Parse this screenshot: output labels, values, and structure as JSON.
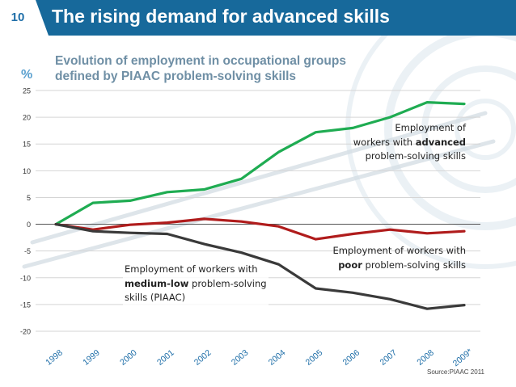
{
  "slide": {
    "number": "10",
    "title": "The rising demand for advanced skills",
    "subtitle_line1": "Evolution of employment in occupational groups",
    "subtitle_line2": "defined by PIAAC problem-solving skills",
    "unit": "%",
    "source": "Source:PIAAC 2011"
  },
  "annotations": {
    "advanced": {
      "pre1": "Employment of",
      "pre2": "workers with ",
      "hl": "advanced",
      "line3": "problem-solving skills"
    },
    "poor": {
      "line1": "Employment of workers with",
      "hl": "poor",
      "post2": " problem-solving skills"
    },
    "medium": {
      "line1": "Employment of workers with",
      "hl": "medium-low",
      "post2": " problem-solving",
      "line3": "skills (PIAAC)"
    }
  },
  "colors": {
    "advanced": "#1fac52",
    "poor": "#b01c1c",
    "medium": "#3a3a3a",
    "header": "#17699b"
  },
  "chart_data": {
    "type": "line",
    "title": "Evolution of employment in occupational groups defined by PIAAC problem-solving skills",
    "xlabel": "",
    "ylabel": "%",
    "categories": [
      "1998",
      "1999",
      "2000",
      "2001",
      "2002",
      "2003",
      "2004",
      "2005",
      "2006",
      "2007",
      "2008",
      "2009*"
    ],
    "yticks": [
      25,
      20,
      15,
      10,
      5,
      0,
      -5,
      -10,
      -15,
      -20
    ],
    "ylim": [
      -20,
      25
    ],
    "grid": true,
    "series": [
      {
        "name": "Employment of workers with advanced problem-solving skills",
        "key": "advanced",
        "values": [
          0,
          4.0,
          4.4,
          6.0,
          6.5,
          8.5,
          13.5,
          17.2,
          18.0,
          20.0,
          22.8,
          22.5
        ]
      },
      {
        "name": "Employment of workers with poor problem-solving skills",
        "key": "poor",
        "values": [
          0,
          -1.0,
          -0.1,
          0.3,
          1.0,
          0.5,
          -0.4,
          -2.8,
          -1.8,
          -1.0,
          -1.7,
          -1.3
        ]
      },
      {
        "name": "Employment of workers with medium-low problem-solving skills (PIAAC)",
        "key": "medium",
        "values": [
          0,
          -1.3,
          -1.6,
          -1.8,
          -3.7,
          -5.3,
          -7.5,
          -12.0,
          -12.8,
          -14.0,
          -15.8,
          -15.1
        ]
      }
    ]
  }
}
